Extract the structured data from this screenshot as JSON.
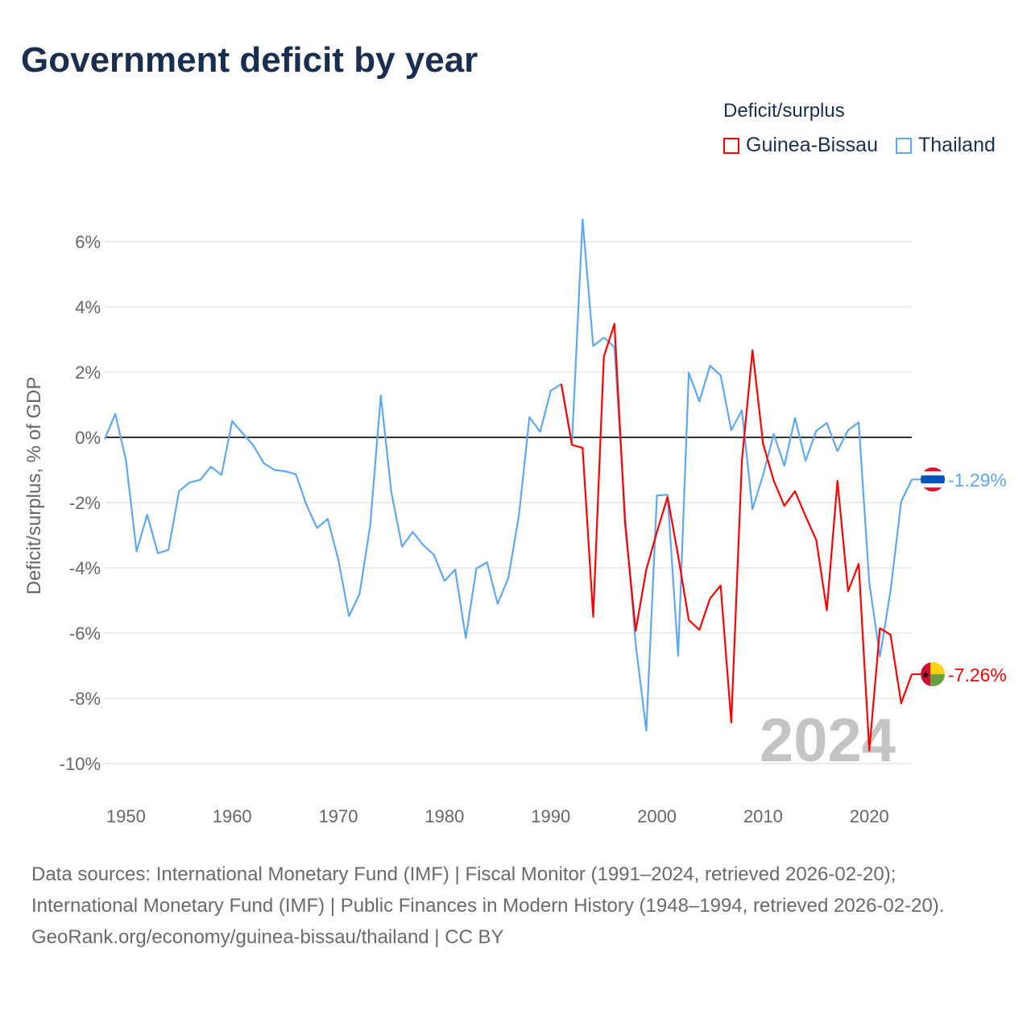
{
  "title": "Government deficit by year",
  "legend": {
    "title": "Deficit/surplus",
    "items": [
      {
        "label": "Guinea-Bissau",
        "color": "#ff0000"
      },
      {
        "label": "Thailand",
        "color": "#5fa8ee"
      }
    ]
  },
  "footer": {
    "sources": "Data sources: International Monetary Fund (IMF) | Fiscal Monitor (1991–2024, retrieved 2026-02-20); International Monetary Fund (IMF) | Public Finances in Modern History (1948–1994, retrieved 2026-02-20).",
    "link": "GeoRank.org/economy/guinea-bissau/thailand | CC BY"
  },
  "chart_data": {
    "type": "line",
    "title": "Government deficit by year",
    "ylabel": "Deficit/surplus, % of GDP",
    "xlabel": "",
    "xlim": [
      1948,
      2024
    ],
    "ylim": [
      -11,
      7
    ],
    "x_ticks": [
      1950,
      1960,
      1970,
      1980,
      1990,
      2000,
      2010,
      2020
    ],
    "y_ticks": [
      6,
      4,
      2,
      0,
      -2,
      -4,
      -6,
      -8,
      -10
    ],
    "y_tick_labels": [
      "6%",
      "4%",
      "2%",
      "0%",
      "-2%",
      "-4%",
      "-6%",
      "-8%",
      "-10%"
    ],
    "watermark_year": "2024",
    "series": [
      {
        "name": "Thailand",
        "color": "#5fa8ee",
        "end_label": "-1.29%",
        "start_year": 1948,
        "values": [
          -0.05,
          0.72,
          -0.7,
          -3.5,
          -2.37,
          -3.55,
          -3.45,
          -1.65,
          -1.38,
          -1.3,
          -0.9,
          -1.15,
          0.5,
          0.12,
          -0.25,
          -0.8,
          -1.0,
          -1.04,
          -1.13,
          -2.07,
          -2.78,
          -2.5,
          -3.75,
          -5.48,
          -4.8,
          -2.7,
          1.28,
          -1.7,
          -3.35,
          -2.9,
          -3.3,
          -3.6,
          -4.4,
          -4.05,
          -6.15,
          -4.02,
          -3.83,
          -5.1,
          -4.32,
          -2.4,
          0.62,
          0.17,
          1.43,
          1.63,
          -0.17,
          6.68,
          2.8,
          3.06,
          2.77,
          -2.4,
          -6.34,
          -8.99,
          -1.78,
          -1.76,
          -6.7,
          1.98,
          1.1,
          2.2,
          1.9,
          0.22,
          0.83,
          -2.2,
          -1.15,
          0.1,
          -0.87,
          0.6,
          -0.72,
          0.2,
          0.44,
          -0.42,
          0.22,
          0.46,
          -4.46,
          -6.72,
          -4.7,
          -1.97,
          -1.29
        ]
      },
      {
        "name": "Guinea-Bissau",
        "color": "#ff0000",
        "end_label": "-7.26%",
        "start_year": 1991,
        "values": [
          1.63,
          -0.23,
          -0.32,
          -5.5,
          2.47,
          3.48,
          -2.64,
          -5.93,
          -4.05,
          -2.9,
          -1.83,
          -3.63,
          -5.6,
          -5.9,
          -4.94,
          -4.54,
          -8.74,
          -0.72,
          2.67,
          -0.2,
          -1.33,
          -2.1,
          -1.65,
          -2.42,
          -3.14,
          -5.3,
          -1.33,
          -4.72,
          -3.88,
          -9.6,
          -5.85,
          -6.05,
          -8.15,
          -7.26
        ]
      }
    ]
  }
}
